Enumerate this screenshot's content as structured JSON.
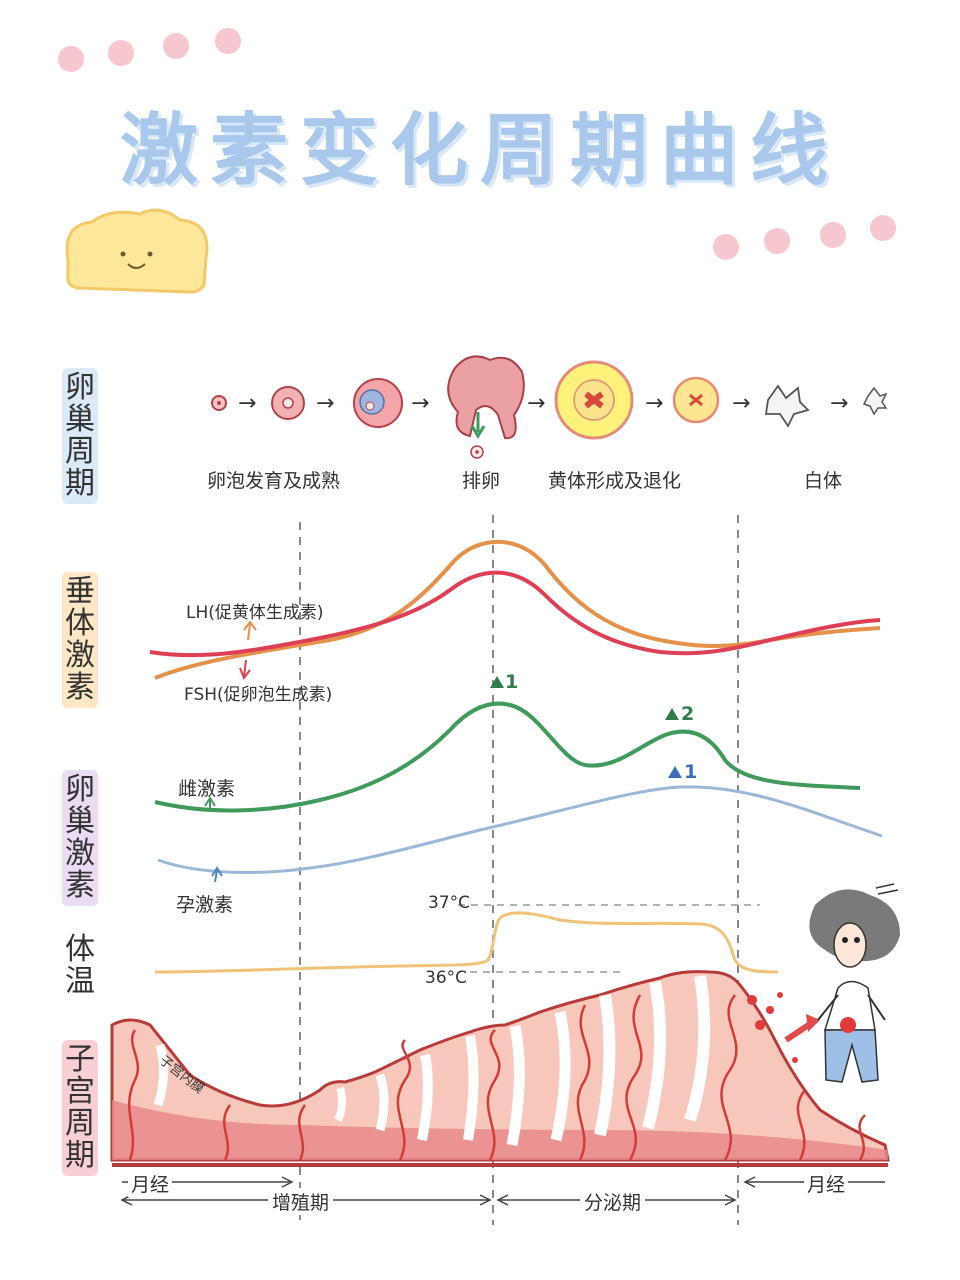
{
  "title": "激素变化周期曲线",
  "side_labels": {
    "ovary_cycle": "卵巢周期",
    "pituitary": "垂体激素",
    "ovarian_hormone": "卵巢激素",
    "temperature": "体温",
    "uterus": "子宫周期"
  },
  "ovary_stages": {
    "follicle": "卵泡发育及成熟",
    "ovulation": "排卵",
    "corpus_luteum": "黄体形成及退化",
    "albicans": "白体"
  },
  "hormones": {
    "lh": "LH(促黄体生成素)",
    "fsh": "FSH(促卵泡生成素)",
    "estrogen": "雌激素",
    "progesterone": "孕激素"
  },
  "peaks": {
    "e1": "1",
    "e2": "2",
    "p1": "1"
  },
  "temperature": {
    "high": "37°C",
    "low": "36°C"
  },
  "uterus": {
    "endometrium": "子宫内膜"
  },
  "phases": {
    "menstruation_left": "月经",
    "proliferative": "增殖期",
    "secretory": "分泌期",
    "menstruation_right": "月经"
  },
  "colors": {
    "title": "#a9c8ec",
    "lh": "#e6914a",
    "fsh": "#de3f55",
    "estrogen": "#3f9a5c",
    "progesterone": "#9db7d8",
    "temperature": "#f0c27a",
    "endometrium": "#e86a6a"
  }
}
